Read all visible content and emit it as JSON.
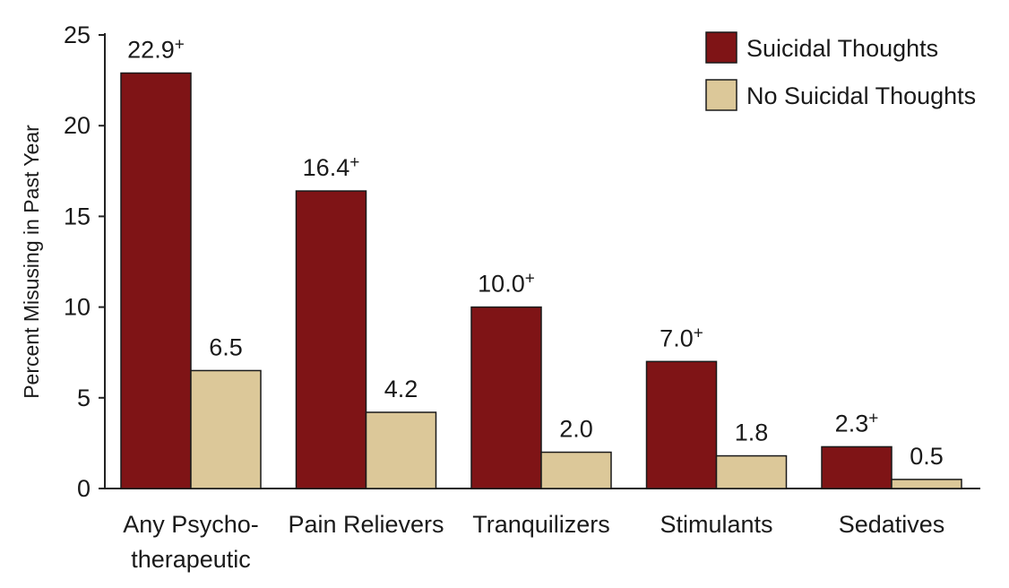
{
  "chart_data": {
    "type": "bar",
    "title": "",
    "xlabel": "",
    "ylabel": "Percent Misusing in Past Year",
    "ylim": [
      0,
      25
    ],
    "yticks": [
      0,
      5,
      10,
      15,
      20,
      25
    ],
    "grid": false,
    "legend_position": "top-right",
    "categories": [
      [
        "Any Psycho-",
        "therapeutic"
      ],
      [
        "Pain Relievers"
      ],
      [
        "Tranquilizers"
      ],
      [
        "Stimulants"
      ],
      [
        "Sedatives"
      ]
    ],
    "series": [
      {
        "name": "Suicidal Thoughts",
        "color": "#7f1416",
        "values": [
          22.9,
          16.4,
          10.0,
          7.0,
          2.3
        ],
        "labels": [
          "22.9",
          "16.4",
          "10.0",
          "7.0",
          "2.3"
        ],
        "label_suffix": "+"
      },
      {
        "name": "No Suicidal Thoughts",
        "color": "#dcc899",
        "values": [
          6.5,
          4.2,
          2.0,
          1.8,
          0.5
        ],
        "labels": [
          "6.5",
          "4.2",
          "2.0",
          "1.8",
          "0.5"
        ],
        "label_suffix": ""
      }
    ]
  }
}
